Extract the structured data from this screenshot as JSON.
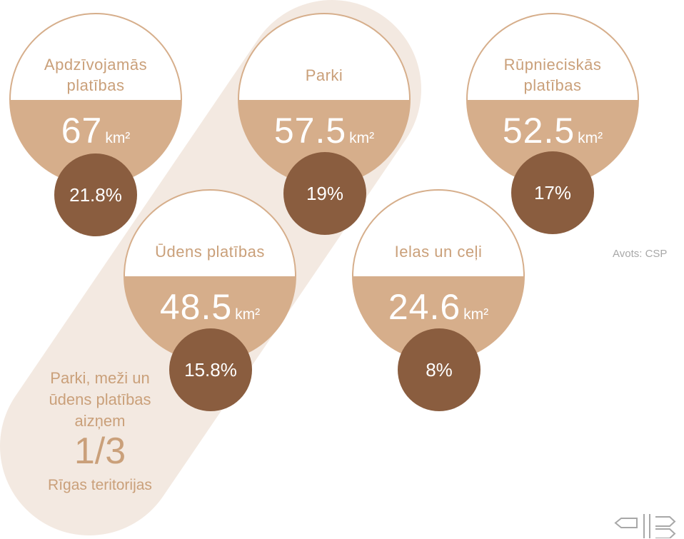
{
  "chart_data": {
    "type": "bubble",
    "title": "",
    "items": [
      {
        "label": "Apdzīvojamās platības",
        "value": "67",
        "unit": "km²",
        "percent": "21.8%"
      },
      {
        "label": "Parki",
        "value": "57.5",
        "unit": "km²",
        "percent": "19%"
      },
      {
        "label": "Rūpnieciskās platības",
        "value": "52.5",
        "unit": "km²",
        "percent": "17%"
      },
      {
        "label": "Ūdens platības",
        "value": "48.5",
        "unit": "km²",
        "percent": "15.8%"
      },
      {
        "label": "Ielas un ceļi",
        "value": "24.6",
        "unit": "km²",
        "percent": "8%"
      }
    ],
    "annotation": {
      "text": "Parki, meži un ūdens platības aizņem",
      "fraction": "1/3",
      "subtext": "Rīgas teritorijas"
    },
    "source": "Avots: CSP"
  },
  "colors": {
    "light": "#d6ae8b",
    "dark": "#8a5d3f",
    "highlight": "#f3e9e1",
    "label": "#caa07a",
    "source": "#a8a8a8"
  },
  "icons": {
    "logo": "signpost-logo-icon"
  }
}
